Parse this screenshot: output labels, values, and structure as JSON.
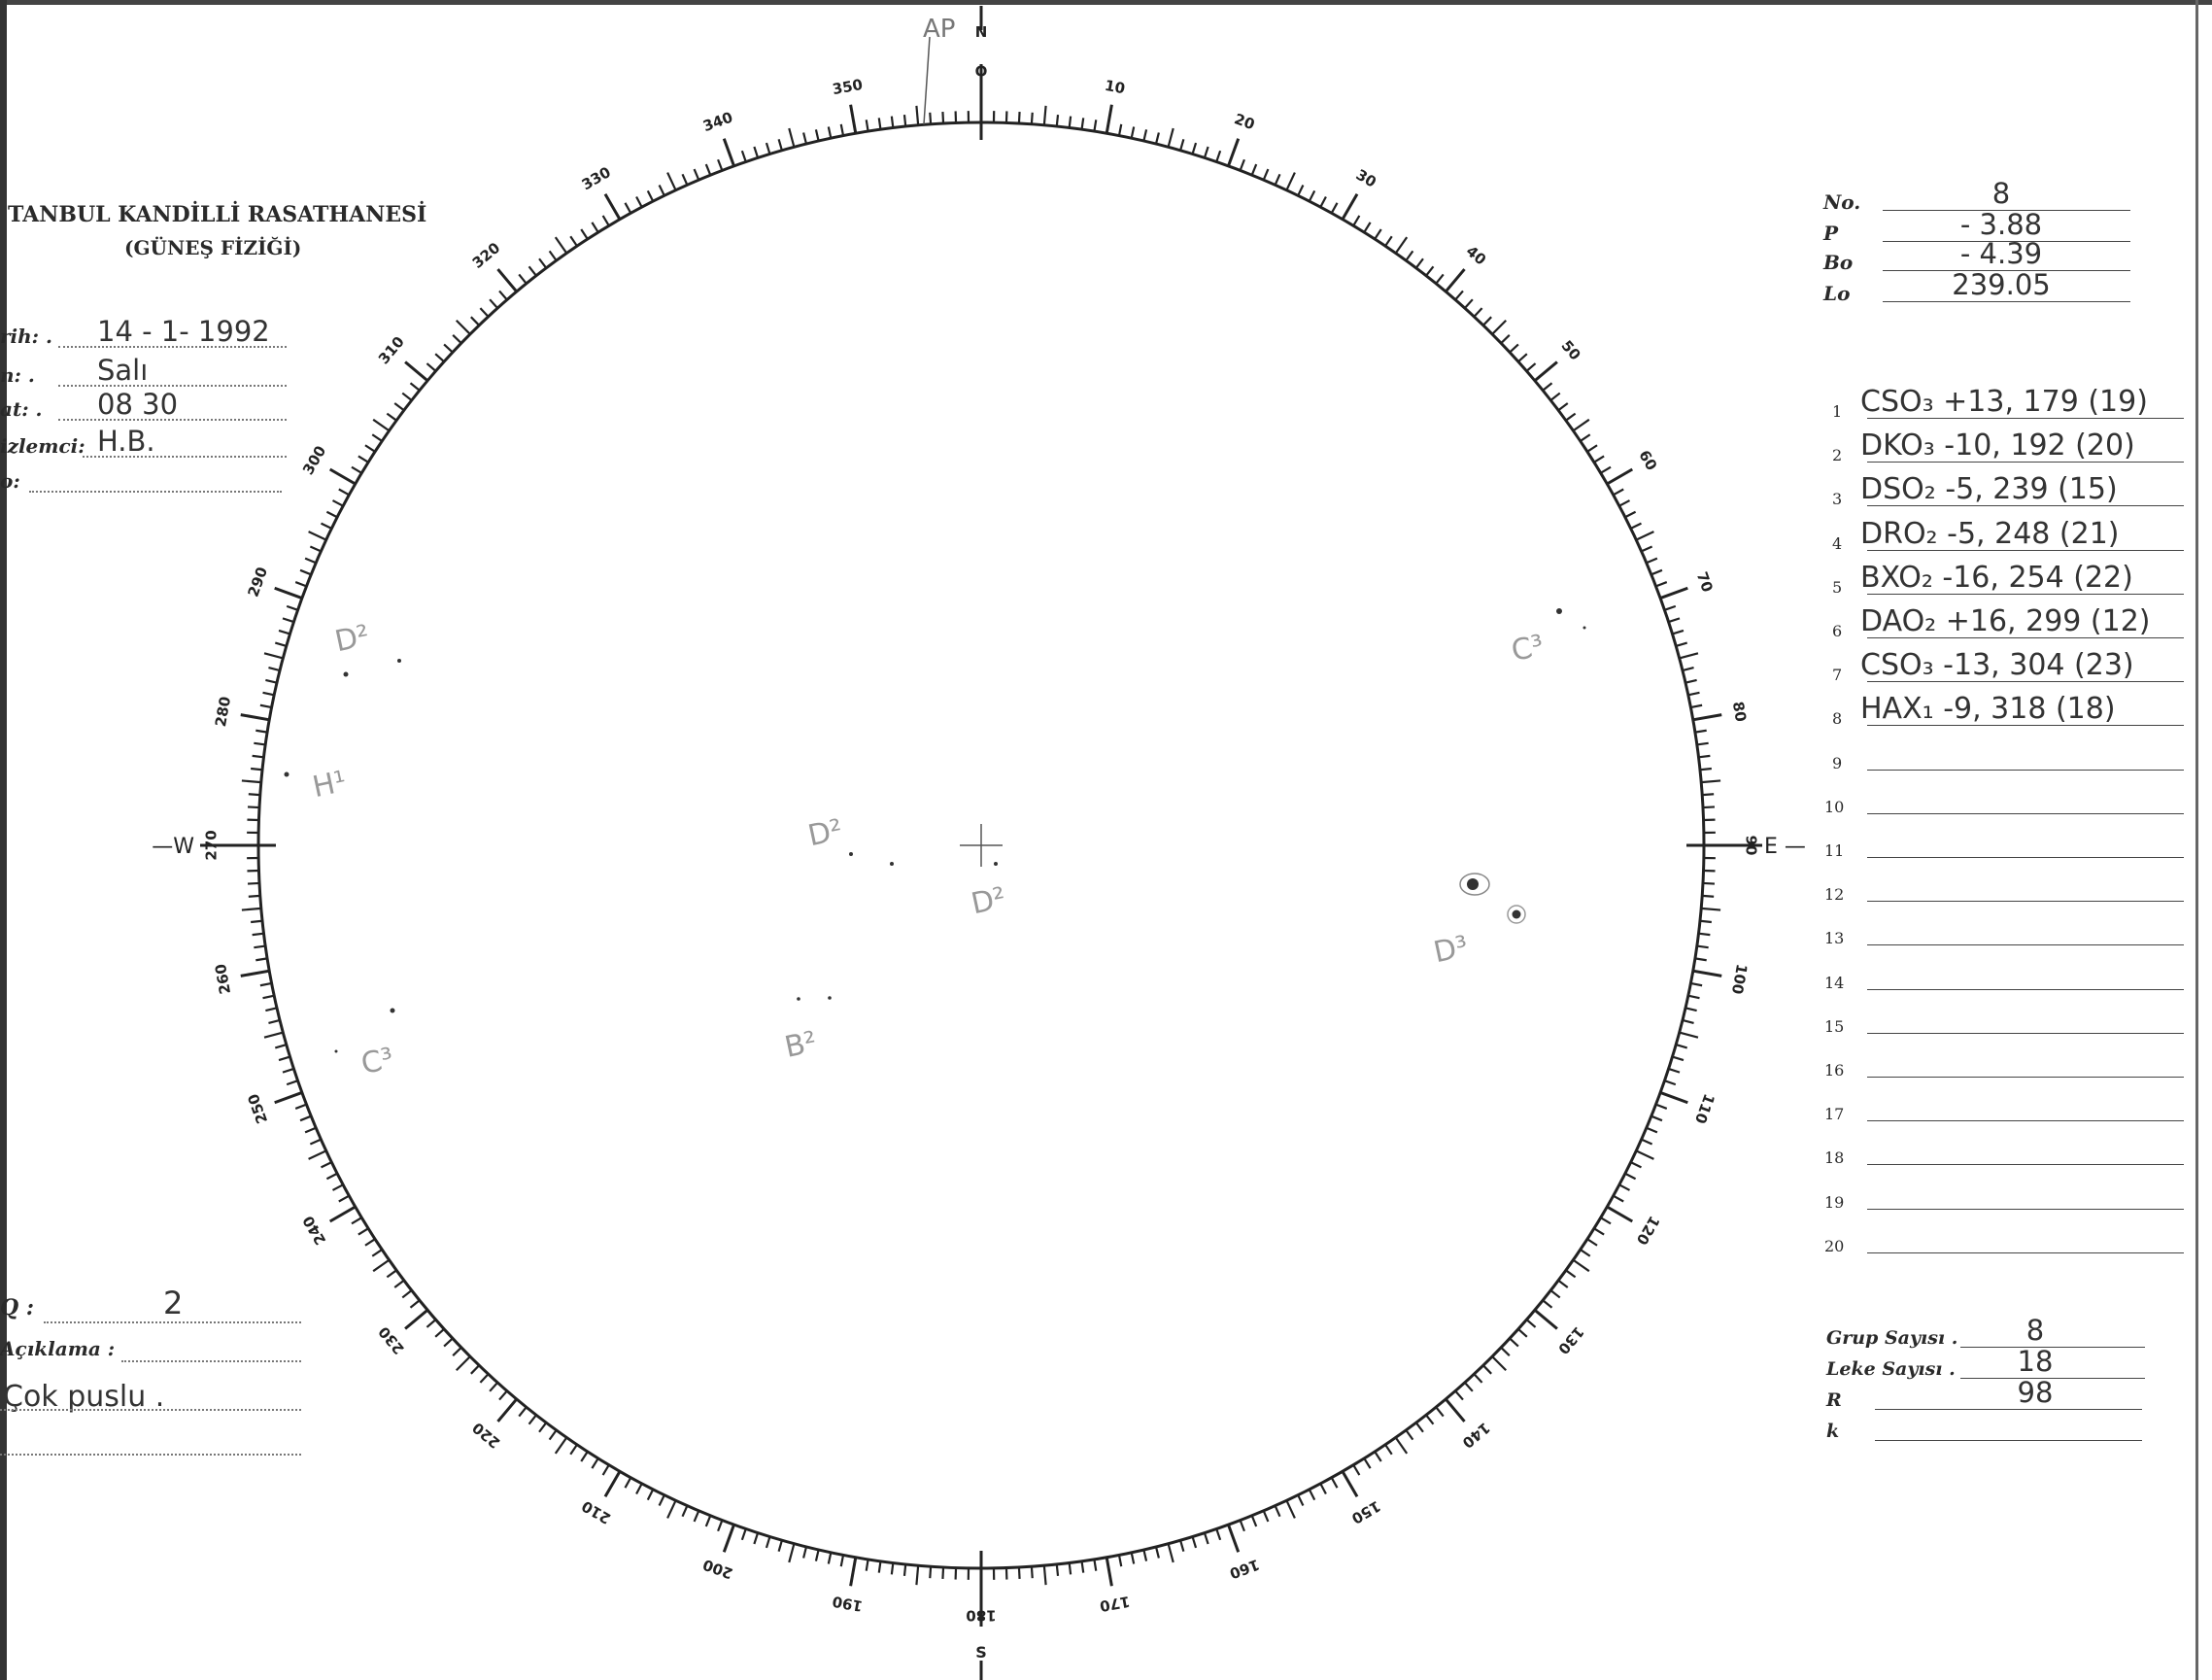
{
  "header": {
    "institution": "TANBUL KANDİLLİ RASATHANESİ",
    "department": "(GÜNEŞ FİZİĞİ)"
  },
  "fields": [
    {
      "label": "rih: .",
      "value": "14 - 1- 1992"
    },
    {
      "label": "n: .",
      "value": "Salı"
    },
    {
      "label": "at: .",
      "value": "08 30"
    },
    {
      "label": "izlemci:",
      "value": "H.B."
    },
    {
      "label": "o:",
      "value": ""
    }
  ],
  "params": [
    {
      "label": "No.",
      "value": "8"
    },
    {
      "label": "P",
      "value": "- 3.88"
    },
    {
      "label": "Bo",
      "value": "- 4.39"
    },
    {
      "label": "Lo",
      "value": "239.05"
    }
  ],
  "groups": [
    {
      "n": "1",
      "value": "CSO₃ +13, 179 (19)"
    },
    {
      "n": "2",
      "value": "DKO₃ -10, 192 (20)"
    },
    {
      "n": "3",
      "value": "DSO₂ -5, 239 (15)"
    },
    {
      "n": "4",
      "value": "DRO₂ -5, 248 (21)"
    },
    {
      "n": "5",
      "value": "BXO₂ -16, 254 (22)"
    },
    {
      "n": "6",
      "value": "DAO₂ +16, 299 (12)"
    },
    {
      "n": "7",
      "value": "CSO₃ -13, 304 (23)"
    },
    {
      "n": "8",
      "value": "HAX₁ -9, 318 (18)"
    },
    {
      "n": "9",
      "value": ""
    },
    {
      "n": "10",
      "value": ""
    },
    {
      "n": "11",
      "value": ""
    },
    {
      "n": "12",
      "value": ""
    },
    {
      "n": "13",
      "value": ""
    },
    {
      "n": "14",
      "value": ""
    },
    {
      "n": "15",
      "value": ""
    },
    {
      "n": "16",
      "value": ""
    },
    {
      "n": "17",
      "value": ""
    },
    {
      "n": "18",
      "value": ""
    },
    {
      "n": "19",
      "value": ""
    },
    {
      "n": "20",
      "value": ""
    }
  ],
  "summary": [
    {
      "label": "Grup Sayısı .",
      "value": "8"
    },
    {
      "label": "Leke Sayısı .",
      "value": "18"
    },
    {
      "label": "R",
      "value": "98"
    },
    {
      "label": "k",
      "value": ""
    }
  ],
  "notes": {
    "q_label": "Q :",
    "q_value": "2",
    "aciklama_label": "Açıklama :",
    "aciklama_value": "Çok puslu ."
  },
  "disk": {
    "north_label": "N",
    "south_label": "S",
    "west_label": "—W",
    "east_label": "E —",
    "ap_label": "AP",
    "scale_labels": [
      "O",
      "10",
      "20",
      "30",
      "40",
      "50",
      "60",
      "70",
      "80",
      "90",
      "100",
      "110",
      "120",
      "130",
      "140",
      "150",
      "160",
      "170",
      "180",
      "190",
      "200",
      "210",
      "220",
      "230",
      "240",
      "250",
      "260",
      "270",
      "280",
      "290",
      "300",
      "310",
      "320",
      "330",
      "340",
      "350"
    ],
    "annotations": [
      {
        "label": "D²",
        "region": "upper-left"
      },
      {
        "label": "H¹",
        "region": "left"
      },
      {
        "label": "C³",
        "region": "lower-left"
      },
      {
        "label": "D²",
        "region": "center-left"
      },
      {
        "label": "D²",
        "region": "center"
      },
      {
        "label": "B²",
        "region": "lower-center"
      },
      {
        "label": "C³",
        "region": "right"
      },
      {
        "label": "D³",
        "region": "lower-right"
      }
    ]
  }
}
